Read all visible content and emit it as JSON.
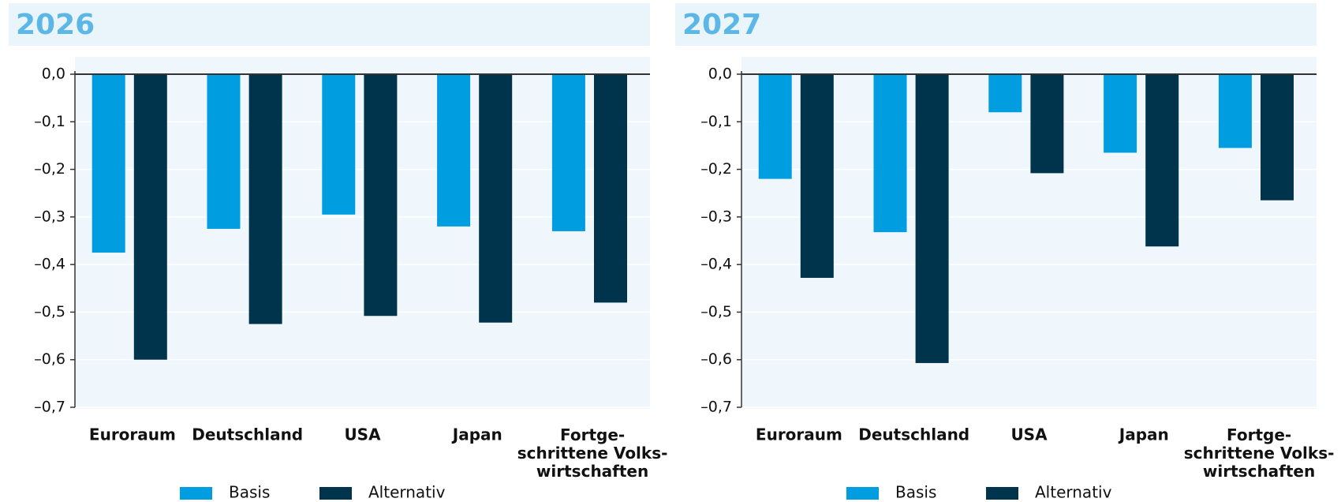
{
  "chart_data": [
    {
      "type": "bar",
      "title": "2026",
      "categories": [
        "Euroraum",
        "Deutschland",
        "USA",
        "Japan",
        "Fortge-\nschrittene Volks-\nwirtschaften"
      ],
      "series": [
        {
          "name": "Basis",
          "color": "#009ee0",
          "values": [
            -0.375,
            -0.325,
            -0.295,
            -0.32,
            -0.33
          ]
        },
        {
          "name": "Alternativ",
          "color": "#00344d",
          "values": [
            -0.6,
            -0.525,
            -0.508,
            -0.522,
            -0.48
          ]
        }
      ],
      "ylim": [
        -0.7,
        0
      ],
      "yticks": [
        {
          "value": 0,
          "label": "0,0"
        },
        {
          "value": -0.1,
          "label": "–0,1"
        },
        {
          "value": -0.2,
          "label": "–0,2"
        },
        {
          "value": -0.3,
          "label": "–0,3"
        },
        {
          "value": -0.4,
          "label": "–0,4"
        },
        {
          "value": -0.5,
          "label": "–0,5"
        },
        {
          "value": -0.6,
          "label": "–0,6"
        },
        {
          "value": -0.7,
          "label": "–0,7"
        }
      ],
      "grid": true
    },
    {
      "type": "bar",
      "title": "2027",
      "categories": [
        "Euroraum",
        "Deutschland",
        "USA",
        "Japan",
        "Fortge-\nschrittene Volks-\nwirtschaften"
      ],
      "series": [
        {
          "name": "Basis",
          "color": "#009ee0",
          "values": [
            -0.22,
            -0.332,
            -0.08,
            -0.165,
            -0.155
          ]
        },
        {
          "name": "Alternativ",
          "color": "#00344d",
          "values": [
            -0.428,
            -0.607,
            -0.208,
            -0.362,
            -0.265
          ]
        }
      ],
      "ylim": [
        -0.7,
        0
      ],
      "yticks": [
        {
          "value": 0,
          "label": "0,0"
        },
        {
          "value": -0.1,
          "label": "–0,1"
        },
        {
          "value": -0.2,
          "label": "–0,2"
        },
        {
          "value": -0.3,
          "label": "–0,3"
        },
        {
          "value": -0.4,
          "label": "–0,4"
        },
        {
          "value": -0.5,
          "label": "–0,5"
        },
        {
          "value": -0.6,
          "label": "–0,6"
        },
        {
          "value": -0.7,
          "label": "–0,7"
        }
      ],
      "grid": true
    }
  ]
}
